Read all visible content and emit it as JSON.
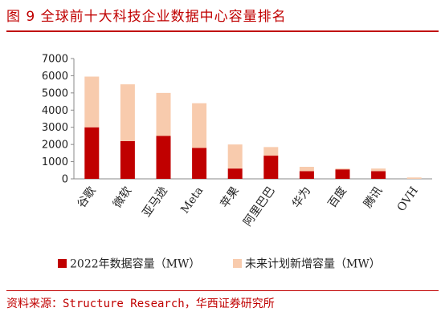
{
  "figure_title": "图 9  全球前十大科技企业数据中心容量排名",
  "source": "资料来源：Structure Research，华西证券研究所",
  "colors": {
    "accent": "#c00000",
    "series_existing": "#c00000",
    "series_planned": "#f8cbad"
  },
  "chart_data": {
    "type": "bar",
    "stacked": true,
    "categories": [
      "谷歌",
      "微软",
      "亚马逊",
      "Meta",
      "苹果",
      "阿里巴巴",
      "华为",
      "百度",
      "腾讯",
      "OVH"
    ],
    "series": [
      {
        "name": "2022年数据容量（MW）",
        "values": [
          3000,
          2200,
          2500,
          1800,
          600,
          1350,
          450,
          550,
          450,
          0
        ]
      },
      {
        "name": "未来计划新增容量（MW）",
        "values": [
          2950,
          3300,
          2500,
          2600,
          1400,
          500,
          250,
          50,
          150,
          80
        ]
      }
    ],
    "ylim": [
      0,
      7000
    ],
    "yticks": [
      0,
      1000,
      2000,
      3000,
      4000,
      5000,
      6000,
      7000
    ],
    "grid": false,
    "legend": "bottom"
  }
}
